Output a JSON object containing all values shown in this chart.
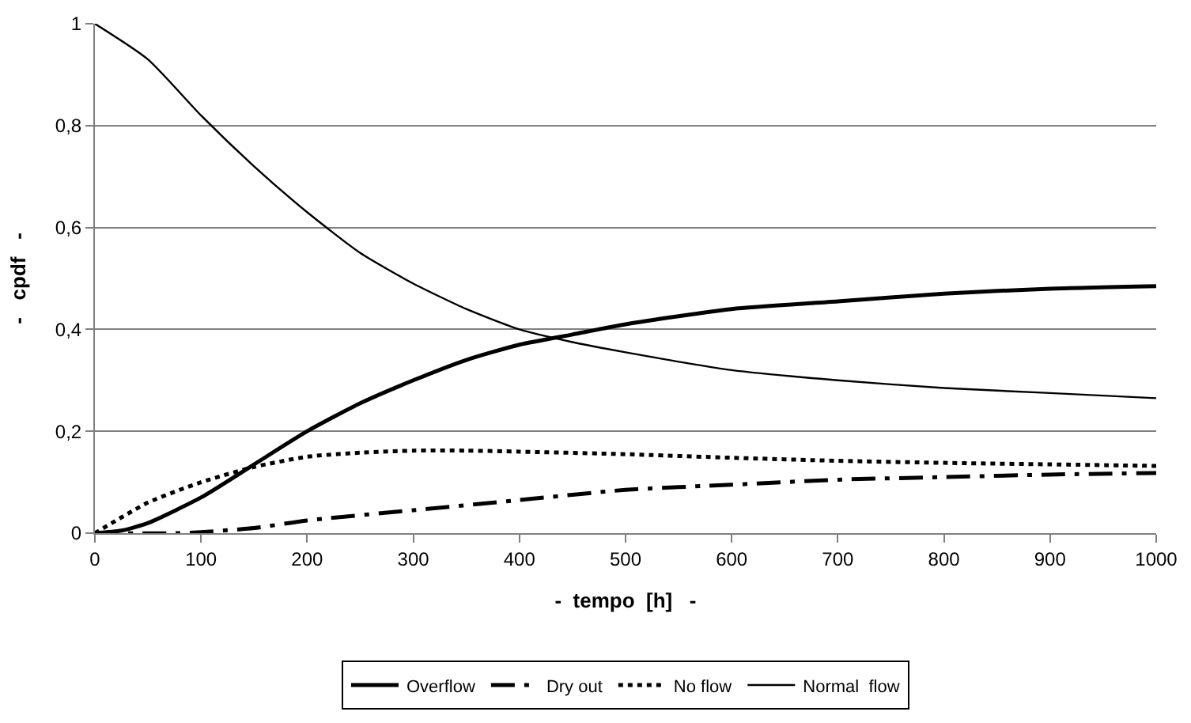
{
  "chart_data": {
    "type": "line",
    "xlabel": "-  tempo  [h]   -",
    "ylabel": "-   cpdf   -",
    "xlim": [
      0,
      1000
    ],
    "xticks": [
      0,
      100,
      200,
      300,
      400,
      500,
      600,
      700,
      800,
      900,
      1000
    ],
    "ylim": [
      0,
      1
    ],
    "yticks": [
      0,
      {
        "value": 0.2,
        "label": "0,2"
      },
      {
        "value": 0.4,
        "label": "0,4"
      },
      {
        "value": 0.6,
        "label": "0,6"
      },
      {
        "value": 0.8,
        "label": "0,8"
      },
      1
    ],
    "grid": "y",
    "legend": "bottom",
    "marker": "none",
    "series": [
      {
        "name": "Overflow",
        "color": "#000000",
        "line_style": "solid",
        "x": [
          0,
          25,
          50,
          100,
          150,
          200,
          250,
          300,
          350,
          400,
          450,
          500,
          600,
          700,
          800,
          900,
          1000
        ],
        "values": [
          0,
          0.005,
          0.02,
          0.07,
          0.135,
          0.2,
          0.255,
          0.3,
          0.34,
          0.37,
          0.39,
          0.41,
          0.44,
          0.455,
          0.47,
          0.48,
          0.485
        ]
      },
      {
        "name": "Dry out",
        "color": "#000000",
        "line_style": "dashdot",
        "x": [
          0,
          80,
          100,
          150,
          200,
          300,
          400,
          500,
          600,
          700,
          800,
          900,
          1000
        ],
        "values": [
          0,
          0,
          0.002,
          0.01,
          0.025,
          0.045,
          0.065,
          0.085,
          0.095,
          0.105,
          0.11,
          0.115,
          0.118
        ]
      },
      {
        "name": "No flow",
        "color": "#000000",
        "line_style": "dashed",
        "x": [
          0,
          50,
          100,
          150,
          200,
          250,
          300,
          350,
          400,
          500,
          600,
          700,
          800,
          900,
          1000
        ],
        "values": [
          0,
          0.06,
          0.1,
          0.13,
          0.15,
          0.158,
          0.162,
          0.162,
          0.16,
          0.155,
          0.148,
          0.142,
          0.138,
          0.135,
          0.132
        ]
      },
      {
        "name": "Normal  flow",
        "color": "#000000",
        "line_style": "solid",
        "x": [
          0,
          50,
          100,
          150,
          200,
          250,
          300,
          350,
          400,
          450,
          500,
          600,
          700,
          800,
          900,
          1000
        ],
        "values": [
          1,
          0.93,
          0.82,
          0.72,
          0.63,
          0.55,
          0.49,
          0.44,
          0.4,
          0.375,
          0.355,
          0.32,
          0.3,
          0.285,
          0.275,
          0.265
        ]
      }
    ]
  }
}
